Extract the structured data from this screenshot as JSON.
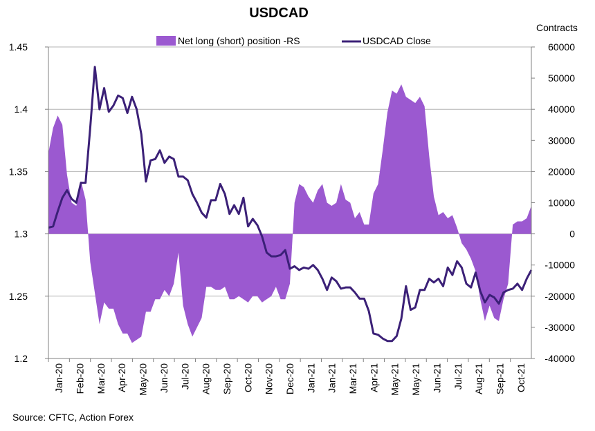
{
  "chart_data": {
    "type": "area+line",
    "title": "USDCAD",
    "right_axis_title": "Contracts",
    "source": "Source: CFTC, Action Forex",
    "colors": {
      "area": "#9b59d0",
      "line": "#3b2077",
      "grid": "#b3b3b3",
      "axis": "#808080"
    },
    "left_axis": {
      "ylim": [
        1.2,
        1.45
      ],
      "ticks": [
        "1.2",
        "1.25",
        "1.3",
        "1.35",
        "1.4",
        "1.45"
      ]
    },
    "right_axis": {
      "ylim": [
        -40000,
        60000
      ],
      "ticks": [
        "-40000",
        "-30000",
        "-20000",
        "-10000",
        "0",
        "10000",
        "20000",
        "30000",
        "40000",
        "50000",
        "60000"
      ]
    },
    "x_labels": [
      "Jan-20",
      "Feb-20",
      "Mar-20",
      "Apr-20",
      "May-20",
      "Jun-20",
      "Jul-20",
      "Aug-20",
      "Sep-20",
      "Oct-20",
      "Nov-20",
      "Dec-20",
      "Jan-21",
      "Jan-21",
      "Mar-21",
      "Apr-21",
      "May-21",
      "May-21",
      "Jun-21",
      "Jul-21",
      "Aug-21",
      "Sep-21",
      "Oct-21"
    ],
    "series": [
      {
        "name": "Net long (short) position -RS",
        "kind": "area",
        "axis": "right",
        "values": [
          26000,
          34000,
          38000,
          35000,
          19000,
          10000,
          9000,
          17000,
          11000,
          -9000,
          -19000,
          -29000,
          -22000,
          -24000,
          -24000,
          -29000,
          -32000,
          -32000,
          -35000,
          -34000,
          -33000,
          -25000,
          -25000,
          -21000,
          -21000,
          -18000,
          -20000,
          -16000,
          -6000,
          -23000,
          -29000,
          -33000,
          -30000,
          -27000,
          -17000,
          -17000,
          -18000,
          -18000,
          -17000,
          -21000,
          -21000,
          -20000,
          -21000,
          -22000,
          -20000,
          -20000,
          -22000,
          -21000,
          -20000,
          -17000,
          -21000,
          -21000,
          -16000,
          10000,
          16000,
          15000,
          12000,
          10000,
          14000,
          16000,
          10000,
          9000,
          10000,
          16000,
          11000,
          10000,
          5000,
          7000,
          3000,
          3000,
          13000,
          16000,
          27000,
          39000,
          46000,
          45000,
          48000,
          44000,
          43000,
          42000,
          44000,
          41000,
          25000,
          12000,
          6000,
          7000,
          5000,
          6000,
          2000,
          -3000,
          -5000,
          -8000,
          -12000,
          -21000,
          -28000,
          -23000,
          -27000,
          -28000,
          -21000,
          -16000,
          3000,
          4000,
          4000,
          5000,
          9000
        ]
      },
      {
        "name": "USDCAD Close",
        "kind": "line",
        "axis": "left",
        "values": [
          1.305,
          1.306,
          1.318,
          1.329,
          1.335,
          1.328,
          1.325,
          1.341,
          1.341,
          1.385,
          1.434,
          1.4,
          1.417,
          1.398,
          1.403,
          1.411,
          1.409,
          1.397,
          1.41,
          1.4,
          1.38,
          1.342,
          1.359,
          1.36,
          1.367,
          1.357,
          1.362,
          1.36,
          1.346,
          1.346,
          1.343,
          1.332,
          1.325,
          1.317,
          1.313,
          1.327,
          1.327,
          1.34,
          1.332,
          1.316,
          1.323,
          1.316,
          1.329,
          1.306,
          1.312,
          1.307,
          1.298,
          1.285,
          1.282,
          1.282,
          1.283,
          1.287,
          1.272,
          1.274,
          1.271,
          1.273,
          1.272,
          1.275,
          1.271,
          1.264,
          1.255,
          1.265,
          1.262,
          1.256,
          1.257,
          1.257,
          1.253,
          1.248,
          1.248,
          1.238,
          1.22,
          1.219,
          1.216,
          1.214,
          1.214,
          1.218,
          1.232,
          1.258,
          1.239,
          1.241,
          1.255,
          1.255,
          1.264,
          1.261,
          1.264,
          1.258,
          1.273,
          1.267,
          1.278,
          1.273,
          1.26,
          1.257,
          1.269,
          1.254,
          1.245,
          1.251,
          1.249,
          1.244,
          1.253,
          1.255,
          1.256,
          1.26,
          1.255,
          1.264,
          1.271
        ]
      }
    ]
  }
}
